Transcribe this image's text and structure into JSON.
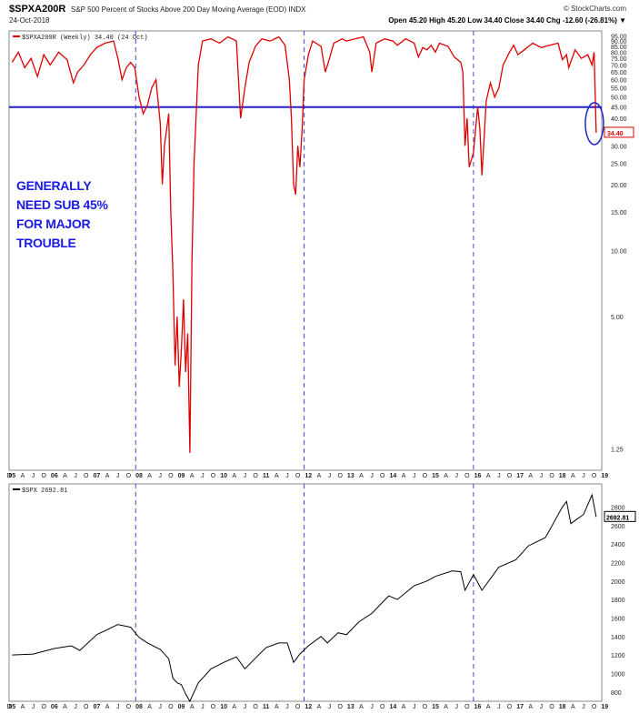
{
  "header": {
    "symbol": "$SPXA200R",
    "description": "S&P 500 Percent of Stocks Above 200 Day Moving Average (EOD) INDX",
    "date": "24-Oct-2018",
    "brand": "© StockCharts.com",
    "ohlc": "Open 45.20  High 45.20  Low 34.40  Close 34.40  Chg -12.60 (-26.81%) ▼"
  },
  "annotation": [
    "GENERALLY",
    "NEED SUB 45%",
    "FOR MAJOR",
    "TROUBLE"
  ],
  "colors": {
    "breadth": "#dd0000",
    "spx": "#000000",
    "threshold": "#2222cc",
    "markers": "#4444cc"
  },
  "chart_data": [
    {
      "type": "line",
      "legend": "$SPXA200R (Weekly) 34.40 (24 Oct)",
      "scale": "log",
      "ylim": [
        1.0,
        100
      ],
      "xlim": [
        2004.93,
        2018.93
      ],
      "y_ticks": [
        "95.00",
        "90.00",
        "85.00",
        "80.00",
        "75.00",
        "70.00",
        "65.00",
        "60.00",
        "55.00",
        "50.00",
        "45.00",
        "40.00",
        "35.00",
        "30.00",
        "25.00",
        "20.00",
        "15.00",
        "10.00",
        "5.00",
        "1.25"
      ],
      "last_value_label": "34.40",
      "threshold": 45,
      "x": [
        2005.0,
        2005.15,
        2005.3,
        2005.45,
        2005.6,
        2005.75,
        2005.9,
        2006.1,
        2006.3,
        2006.45,
        2006.55,
        2006.7,
        2006.85,
        2007.0,
        2007.2,
        2007.4,
        2007.5,
        2007.6,
        2007.7,
        2007.8,
        2007.9,
        2008.0,
        2008.1,
        2008.2,
        2008.3,
        2008.4,
        2008.5,
        2008.55,
        2008.6,
        2008.7,
        2008.75,
        2008.8,
        2008.85,
        2008.9,
        2008.95,
        2009.0,
        2009.05,
        2009.1,
        2009.15,
        2009.2,
        2009.25,
        2009.3,
        2009.4,
        2009.5,
        2009.7,
        2009.9,
        2010.1,
        2010.3,
        2010.35,
        2010.4,
        2010.5,
        2010.6,
        2010.75,
        2010.9,
        2011.1,
        2011.3,
        2011.45,
        2011.55,
        2011.6,
        2011.65,
        2011.7,
        2011.75,
        2011.8,
        2011.85,
        2011.9,
        2012.0,
        2012.1,
        2012.3,
        2012.4,
        2012.5,
        2012.6,
        2012.8,
        2012.9,
        2013.1,
        2013.3,
        2013.45,
        2013.5,
        2013.6,
        2013.8,
        2014.0,
        2014.1,
        2014.3,
        2014.5,
        2014.6,
        2014.7,
        2014.8,
        2014.9,
        2015.0,
        2015.1,
        2015.3,
        2015.45,
        2015.6,
        2015.65,
        2015.7,
        2015.75,
        2015.8,
        2015.9,
        2016.0,
        2016.05,
        2016.1,
        2016.15,
        2016.2,
        2016.3,
        2016.4,
        2016.5,
        2016.6,
        2016.75,
        2016.85,
        2016.95,
        2017.1,
        2017.3,
        2017.5,
        2017.7,
        2017.9,
        2018.0,
        2018.1,
        2018.15,
        2018.3,
        2018.45,
        2018.6,
        2018.7,
        2018.75,
        2018.8
      ],
      "y": [
        72,
        80,
        68,
        75,
        62,
        78,
        70,
        80,
        74,
        58,
        65,
        70,
        78,
        84,
        88,
        90,
        75,
        60,
        68,
        72,
        68,
        50,
        42,
        46,
        55,
        60,
        38,
        20,
        30,
        42,
        15,
        8,
        3,
        5,
        2.4,
        3.5,
        6,
        2.8,
        4.2,
        1.2,
        9,
        25,
        70,
        90,
        92,
        88,
        94,
        90,
        60,
        40,
        55,
        72,
        85,
        92,
        90,
        94,
        86,
        60,
        40,
        20,
        18,
        30,
        24,
        35,
        60,
        78,
        90,
        85,
        65,
        75,
        88,
        92,
        90,
        92,
        94,
        80,
        65,
        88,
        92,
        90,
        86,
        92,
        88,
        76,
        84,
        82,
        86,
        80,
        88,
        85,
        76,
        72,
        65,
        30,
        40,
        24,
        28,
        45,
        36,
        22,
        32,
        48,
        58,
        50,
        55,
        70,
        80,
        86,
        78,
        82,
        88,
        84,
        86,
        88,
        74,
        78,
        68,
        82,
        75,
        78,
        70,
        80,
        34.4
      ]
    },
    {
      "type": "line",
      "legend": "$SPX 2692.81",
      "ylim": [
        700,
        3050
      ],
      "xlim": [
        2004.93,
        2018.93
      ],
      "y_ticks": [
        2800,
        2600,
        2400,
        2200,
        2000,
        1800,
        1600,
        1400,
        1200,
        1000,
        800
      ],
      "last_value_label": "2692.81",
      "x": [
        2005.0,
        2005.5,
        2006.0,
        2006.4,
        2006.6,
        2007.0,
        2007.5,
        2007.8,
        2008.0,
        2008.2,
        2008.5,
        2008.7,
        2008.8,
        2008.9,
        2009.0,
        2009.1,
        2009.2,
        2009.4,
        2009.7,
        2010.0,
        2010.3,
        2010.5,
        2010.8,
        2011.0,
        2011.3,
        2011.5,
        2011.65,
        2011.8,
        2012.0,
        2012.3,
        2012.45,
        2012.7,
        2012.9,
        2013.2,
        2013.5,
        2013.9,
        2014.1,
        2014.5,
        2014.8,
        2015.0,
        2015.4,
        2015.6,
        2015.7,
        2015.9,
        2016.1,
        2016.5,
        2016.9,
        2017.2,
        2017.6,
        2018.0,
        2018.1,
        2018.2,
        2018.5,
        2018.7,
        2018.8
      ],
      "y": [
        1200,
        1210,
        1270,
        1300,
        1250,
        1420,
        1530,
        1500,
        1390,
        1330,
        1260,
        1160,
        950,
        900,
        880,
        780,
        700,
        900,
        1050,
        1120,
        1180,
        1050,
        1190,
        1280,
        1330,
        1330,
        1120,
        1210,
        1300,
        1400,
        1330,
        1440,
        1420,
        1560,
        1650,
        1840,
        1800,
        1950,
        2000,
        2050,
        2110,
        2100,
        1900,
        2070,
        1900,
        2150,
        2230,
        2380,
        2470,
        2800,
        2860,
        2620,
        2720,
        2930,
        2692.81
      ]
    }
  ],
  "x_axis_labels": [
    [
      "D",
      2004.93
    ],
    [
      "05",
      2005.0
    ],
    [
      "A",
      2005.25
    ],
    [
      "J",
      2005.5
    ],
    [
      "O",
      2005.75
    ],
    [
      "06",
      2006.0
    ],
    [
      "A",
      2006.25
    ],
    [
      "J",
      2006.5
    ],
    [
      "O",
      2006.75
    ],
    [
      "07",
      2007.0
    ],
    [
      "A",
      2007.25
    ],
    [
      "J",
      2007.5
    ],
    [
      "O",
      2007.75
    ],
    [
      "08",
      2008.0
    ],
    [
      "A",
      2008.25
    ],
    [
      "J",
      2008.5
    ],
    [
      "O",
      2008.75
    ],
    [
      "09",
      2009.0
    ],
    [
      "A",
      2009.25
    ],
    [
      "J",
      2009.5
    ],
    [
      "O",
      2009.75
    ],
    [
      "10",
      2010.0
    ],
    [
      "A",
      2010.25
    ],
    [
      "J",
      2010.5
    ],
    [
      "O",
      2010.75
    ],
    [
      "11",
      2011.0
    ],
    [
      "A",
      2011.25
    ],
    [
      "J",
      2011.5
    ],
    [
      "O",
      2011.75
    ],
    [
      "12",
      2012.0
    ],
    [
      "A",
      2012.25
    ],
    [
      "J",
      2012.5
    ],
    [
      "O",
      2012.75
    ],
    [
      "13",
      2013.0
    ],
    [
      "A",
      2013.25
    ],
    [
      "J",
      2013.5
    ],
    [
      "O",
      2013.75
    ],
    [
      "14",
      2014.0
    ],
    [
      "A",
      2014.25
    ],
    [
      "J",
      2014.5
    ],
    [
      "O",
      2014.75
    ],
    [
      "15",
      2015.0
    ],
    [
      "A",
      2015.25
    ],
    [
      "J",
      2015.5
    ],
    [
      "O",
      2015.75
    ],
    [
      "16",
      2016.0
    ],
    [
      "A",
      2016.25
    ],
    [
      "J",
      2016.5
    ],
    [
      "O",
      2016.75
    ],
    [
      "17",
      2017.0
    ],
    [
      "A",
      2017.25
    ],
    [
      "J",
      2017.5
    ],
    [
      "O",
      2017.75
    ],
    [
      "18",
      2018.0
    ],
    [
      "A",
      2018.25
    ],
    [
      "J",
      2018.5
    ],
    [
      "O",
      2018.75
    ],
    [
      "19",
      2019.0
    ]
  ],
  "vertical_markers": [
    2007.92,
    2011.9,
    2015.9
  ]
}
